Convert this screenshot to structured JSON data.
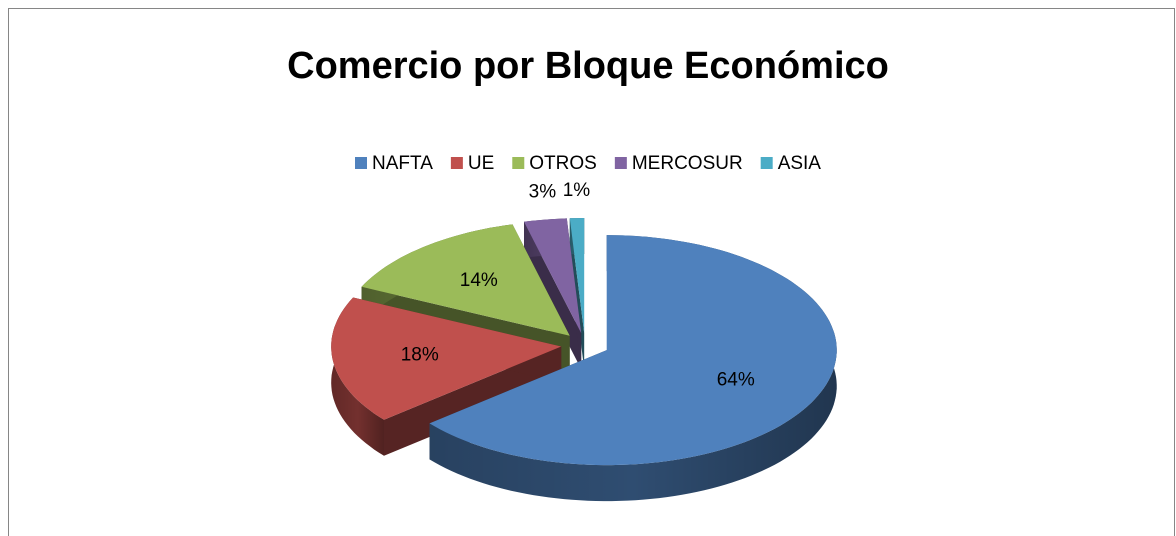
{
  "chart_data": {
    "type": "pie3d",
    "title": "Comercio por Bloque Económico",
    "categories": [
      "NAFTA",
      "UE",
      "OTROS",
      "MERCOSUR",
      "ASIA"
    ],
    "values": [
      64,
      18,
      14,
      3,
      1
    ],
    "value_labels": [
      "64%",
      "18%",
      "14%",
      "3%",
      "1%"
    ],
    "colors": [
      "#4f81bd",
      "#c0504d",
      "#9bbb59",
      "#8064a2",
      "#4bacc6"
    ],
    "legend": "top"
  }
}
